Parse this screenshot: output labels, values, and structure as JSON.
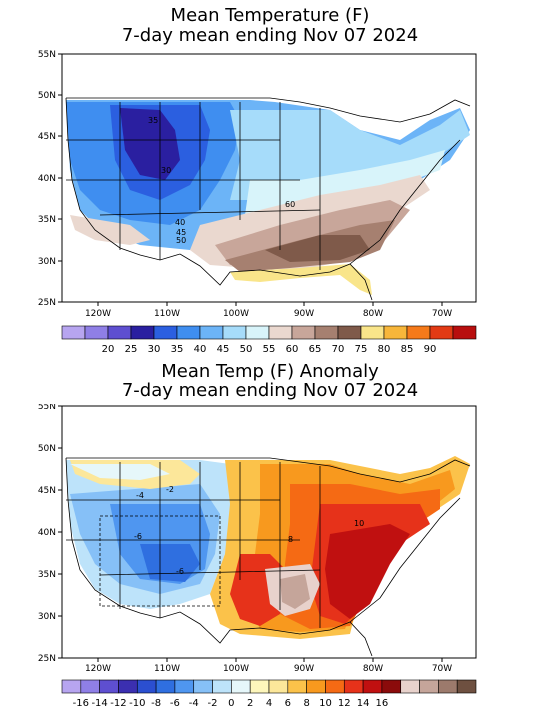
{
  "panel1": {
    "title1": "Mean Temperature (F)",
    "title2": "7-day mean ending Nov 07 2024",
    "lat_labels": [
      "55N",
      "50N",
      "45N",
      "40N",
      "35N",
      "30N",
      "25N"
    ],
    "lon_labels": [
      "120W",
      "110W",
      "100W",
      "90W",
      "80W",
      "70W"
    ],
    "contour_labels": [
      "35",
      "30",
      "40",
      "45",
      "50",
      "60"
    ],
    "colorbar": {
      "colors": [
        "#b7a5f0",
        "#8f7fe6",
        "#5e4fd0",
        "#2a1fa0",
        "#2b5fe0",
        "#3f8ef0",
        "#6cb4f7",
        "#a6dcfa",
        "#d8f4fa",
        "#ead8cf",
        "#c8a69a",
        "#a68070",
        "#7f5a4a",
        "#f9e58a",
        "#f7b63a",
        "#f57a1a",
        "#e23a14",
        "#b80e0e"
      ],
      "labels": [
        "20",
        "25",
        "30",
        "35",
        "40",
        "45",
        "50",
        "55",
        "60",
        "65",
        "70",
        "75",
        "80",
        "85",
        "90"
      ]
    }
  },
  "panel2": {
    "title1": "Mean Temp (F) Anomaly",
    "title2": "7-day mean ending Nov 07 2024",
    "lat_labels": [
      "55N",
      "50N",
      "45N",
      "40N",
      "35N",
      "30N",
      "25N"
    ],
    "lon_labels": [
      "120W",
      "110W",
      "100W",
      "90W",
      "80W",
      "70W"
    ],
    "contour_labels": [
      "-4",
      "-2",
      "-6",
      "-6",
      "8",
      "10"
    ],
    "colorbar": {
      "colors": [
        "#b7a5f0",
        "#8f7fe6",
        "#5e4fd0",
        "#3b2fb0",
        "#2b4fd0",
        "#2f6fe0",
        "#4f96f0",
        "#86c0f7",
        "#bde3fa",
        "#e6f7fa",
        "#fdf6bb",
        "#fce79a",
        "#fbc24a",
        "#f8991e",
        "#f56a14",
        "#e6321a",
        "#c01010",
        "#8b0b0b",
        "#e8d2cc",
        "#c5a59a",
        "#9c7a6c",
        "#6e5040"
      ],
      "labels": [
        "-16",
        "-14",
        "-12",
        "-10",
        "-8",
        "-6",
        "-4",
        "-2",
        "0",
        "2",
        "4",
        "6",
        "8",
        "10",
        "12",
        "14",
        "16"
      ]
    }
  }
}
